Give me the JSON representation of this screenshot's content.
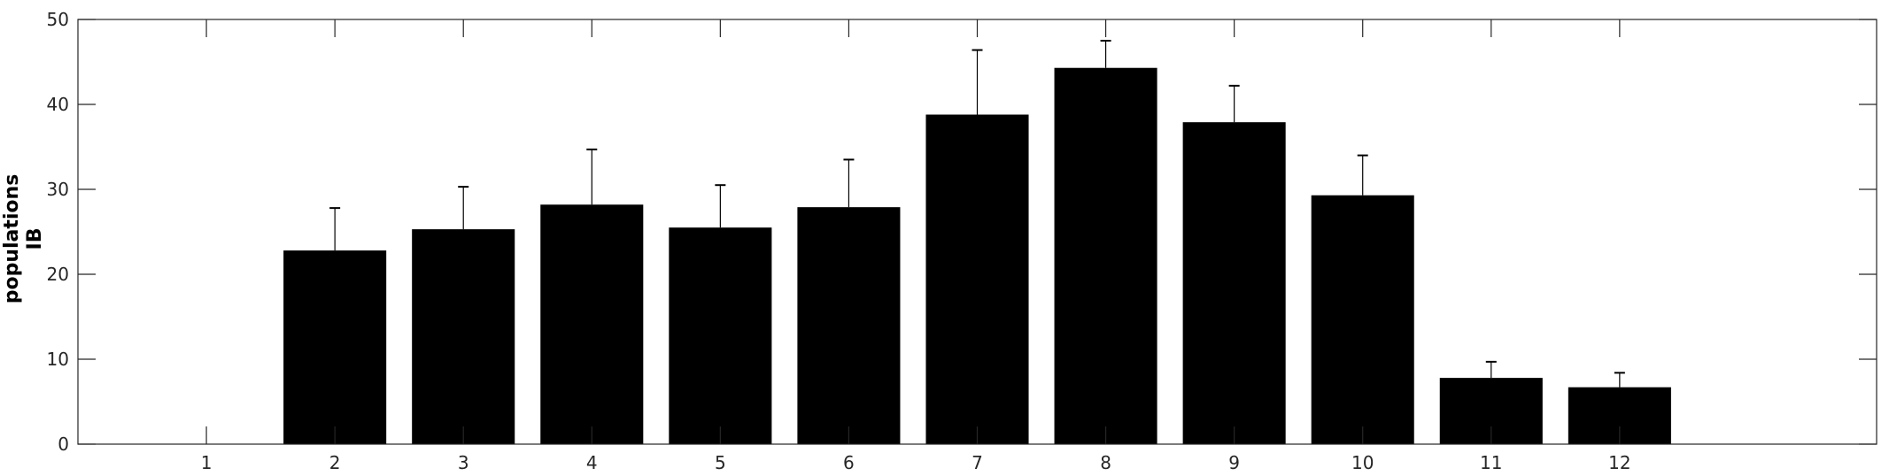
{
  "chart_data": {
    "type": "bar",
    "categories": [
      "1",
      "2",
      "3",
      "4",
      "5",
      "6",
      "7",
      "8",
      "9",
      "10",
      "11",
      "12"
    ],
    "values": [
      0,
      22.8,
      25.3,
      28.2,
      25.5,
      27.9,
      38.8,
      44.3,
      37.9,
      29.3,
      7.8,
      6.7
    ],
    "error_upper": [
      0,
      5.0,
      5.0,
      6.5,
      5.0,
      5.6,
      7.6,
      3.2,
      4.3,
      4.7,
      1.9,
      1.7
    ],
    "title": "",
    "xlabel": "",
    "ylabel_lines": [
      "populations",
      "IB"
    ],
    "xlim": [
      0,
      14
    ],
    "ylim": [
      0,
      50
    ],
    "yticks": [
      0,
      10,
      20,
      30,
      40,
      50
    ],
    "grid": false,
    "bar_color": "#000000",
    "axis_color": "#262626"
  }
}
